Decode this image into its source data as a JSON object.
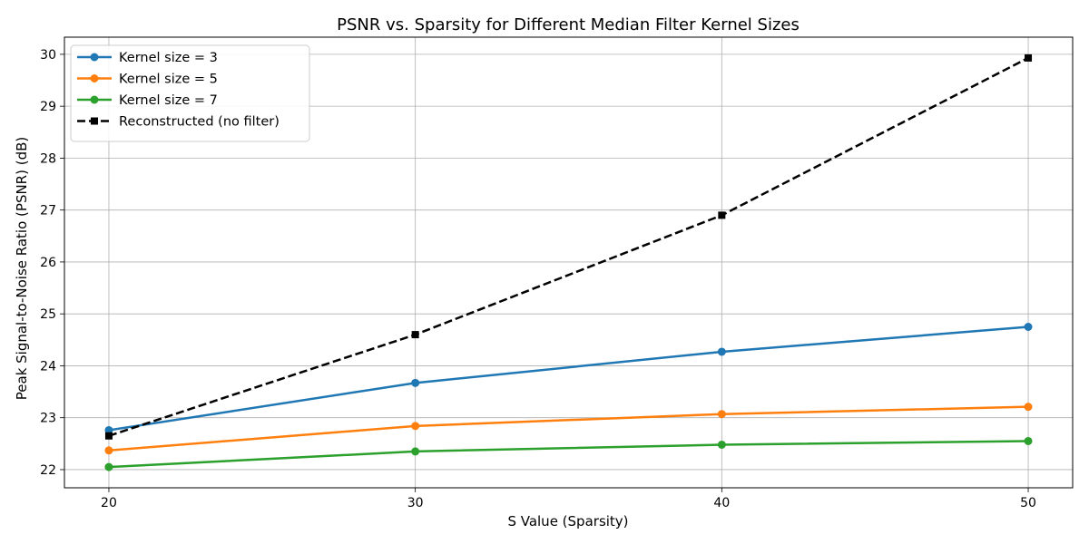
{
  "chart_data": {
    "type": "line",
    "title": "PSNR vs. Sparsity for Different Median Filter Kernel Sizes",
    "xlabel": "S Value (Sparsity)",
    "ylabel": "Peak Signal-to-Noise Ratio (PSNR) (dB)",
    "x": [
      20,
      30,
      40,
      50
    ],
    "xlim": [
      18.55,
      51.45
    ],
    "ylim": [
      21.65,
      30.33
    ],
    "x_ticks": [
      20,
      30,
      40,
      50
    ],
    "y_ticks": [
      22,
      23,
      24,
      25,
      26,
      27,
      28,
      29,
      30
    ],
    "grid": true,
    "legend_position": "top-left",
    "series": [
      {
        "name": "Kernel size = 3",
        "color": "#1f77b4",
        "line_style": "solid",
        "marker": "circle",
        "values": [
          22.76,
          23.67,
          24.27,
          24.75
        ]
      },
      {
        "name": "Kernel size = 5",
        "color": "#ff7f0e",
        "line_style": "solid",
        "marker": "circle",
        "values": [
          22.37,
          22.84,
          23.07,
          23.21
        ]
      },
      {
        "name": "Kernel size = 7",
        "color": "#2ca02c",
        "line_style": "solid",
        "marker": "circle",
        "values": [
          22.05,
          22.35,
          22.48,
          22.55
        ]
      },
      {
        "name": "Reconstructed (no filter)",
        "color": "#000000",
        "line_style": "dashed",
        "marker": "square",
        "values": [
          22.65,
          24.6,
          26.9,
          29.93
        ]
      }
    ]
  }
}
